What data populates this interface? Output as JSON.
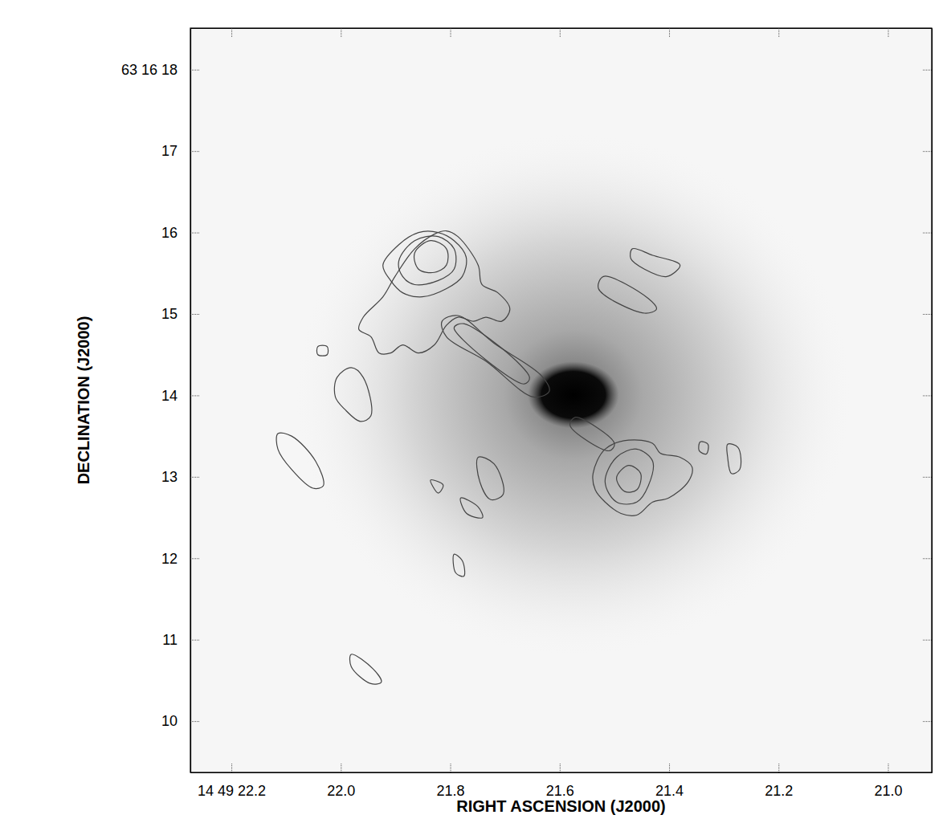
{
  "chart_data": {
    "type": "contour",
    "x_label": "RIGHT ASCENSION (J2000)",
    "y_label": "DECLINATION (J2000)",
    "xlim": [
      22.275,
      20.92
    ],
    "ylim": [
      9.37,
      18.51
    ],
    "xticks": [
      {
        "value": 22.2,
        "label": "14 49 22.2"
      },
      {
        "value": 22.0,
        "label": "22.0"
      },
      21.8,
      21.6,
      21.4,
      21.2,
      {
        "value": 21.0,
        "label": "21.0"
      }
    ],
    "yticks": [
      {
        "value": 18,
        "label": "63 16 18"
      },
      17,
      16,
      15,
      14,
      13,
      12,
      11,
      10
    ],
    "galaxy": {
      "ra": 21.575,
      "dec": 14.006,
      "core_major": 0.56,
      "core_minor": 0.41,
      "halo_major": 3.4,
      "halo_minor": 3.2
    },
    "contours": [
      {
        "ra": [
          21.967,
          21.959,
          21.923,
          21.901,
          21.865,
          21.829,
          21.807,
          21.786,
          21.749,
          21.742,
          21.713,
          21.691,
          21.706,
          21.735,
          21.757,
          21.786,
          21.807,
          21.829,
          21.858,
          21.887,
          21.909,
          21.93,
          21.945
        ],
        "dec": [
          14.81,
          14.96,
          15.21,
          15.46,
          15.8,
          15.98,
          16.02,
          15.95,
          15.6,
          15.36,
          15.26,
          15.06,
          14.91,
          14.96,
          14.91,
          14.96,
          14.86,
          14.62,
          14.52,
          14.62,
          14.52,
          14.52,
          14.72
        ]
      },
      {
        "ra": [
          21.923,
          21.894,
          21.858,
          21.822,
          21.793,
          21.771,
          21.778,
          21.807,
          21.851,
          21.887,
          21.909
        ],
        "dec": [
          15.6,
          15.85,
          16.0,
          16.0,
          15.9,
          15.7,
          15.46,
          15.31,
          15.21,
          15.26,
          15.41
        ]
      },
      {
        "ra": [
          21.894,
          21.865,
          21.822,
          21.793,
          21.793,
          21.822,
          21.865,
          21.887
        ],
        "dec": [
          15.65,
          15.9,
          15.95,
          15.8,
          15.55,
          15.41,
          15.36,
          15.46
        ]
      },
      {
        "ra": [
          21.865,
          21.836,
          21.807,
          21.807,
          21.829,
          21.858
        ],
        "dec": [
          15.75,
          15.9,
          15.8,
          15.6,
          15.51,
          15.55
        ]
      },
      {
        "ra": [
          21.815,
          21.786,
          21.72,
          21.633,
          21.619,
          21.648,
          21.735,
          21.807
        ],
        "dec": [
          14.91,
          14.98,
          14.64,
          14.24,
          14.05,
          13.98,
          14.42,
          14.72
        ]
      },
      {
        "ra": [
          21.793,
          21.775,
          21.655,
          21.665
        ],
        "dec": [
          14.83,
          14.88,
          14.22,
          14.14
        ]
      },
      {
        "ra": [
          21.572,
          21.5,
          21.509,
          21.581
        ],
        "dec": [
          13.73,
          13.41,
          13.32,
          13.63
        ]
      },
      {
        "ra": [
          21.539,
          21.517,
          21.474,
          21.43,
          21.416,
          21.38,
          21.358,
          21.365,
          21.401,
          21.43,
          21.459,
          21.488,
          21.517,
          21.535
        ],
        "dec": [
          13.04,
          13.34,
          13.45,
          13.41,
          13.29,
          13.24,
          13.12,
          12.94,
          12.74,
          12.69,
          12.53,
          12.55,
          12.69,
          12.84
        ]
      },
      {
        "ra": [
          21.517,
          21.496,
          21.459,
          21.43,
          21.438,
          21.459,
          21.496
        ],
        "dec": [
          12.94,
          13.24,
          13.34,
          13.19,
          12.89,
          12.69,
          12.69
        ]
      },
      {
        "ra": [
          21.496,
          21.474,
          21.452,
          21.459,
          21.481
        ],
        "dec": [
          12.99,
          13.14,
          13.04,
          12.84,
          12.82
        ]
      },
      {
        "ra": [
          22.007,
          21.981,
          21.959,
          21.945,
          21.964,
          21.993,
          22.01
        ],
        "dec": [
          14.22,
          14.34,
          14.22,
          13.75,
          13.68,
          13.83,
          13.98
        ]
      },
      {
        "ra": [
          22.115,
          22.09,
          22.046,
          22.032,
          22.051,
          22.09,
          22.115
        ],
        "dec": [
          13.53,
          13.5,
          13.19,
          12.89,
          12.86,
          13.09,
          13.34
        ]
      },
      {
        "ra": [
          21.467,
          21.43,
          21.38,
          21.404,
          21.445,
          21.47
        ],
        "dec": [
          15.8,
          15.72,
          15.6,
          15.46,
          15.55,
          15.68
        ]
      },
      {
        "ra": [
          21.52,
          21.438,
          21.423,
          21.445,
          21.529
        ],
        "dec": [
          15.46,
          15.19,
          15.06,
          15.01,
          15.31
        ]
      },
      {
        "ra": [
          21.749,
          21.72,
          21.703,
          21.726,
          21.746
        ],
        "dec": [
          13.24,
          13.16,
          12.79,
          12.72,
          12.94
        ]
      },
      {
        "ra": [
          21.781,
          21.749,
          21.741,
          21.77
        ],
        "dec": [
          12.74,
          12.63,
          12.5,
          12.55
        ]
      },
      {
        "ra": [
          21.793,
          21.778,
          21.775,
          21.79
        ],
        "dec": [
          12.05,
          11.97,
          11.78,
          11.82
        ]
      },
      {
        "ra": [
          21.981,
          21.941,
          21.926,
          21.945,
          21.981
        ],
        "dec": [
          10.82,
          10.64,
          10.48,
          10.46,
          10.67
        ]
      },
      {
        "ra": [
          21.343,
          21.329,
          21.332,
          21.345
        ],
        "dec": [
          13.43,
          13.4,
          13.28,
          13.32
        ]
      },
      {
        "ra": [
          21.293,
          21.274,
          21.271,
          21.286,
          21.293
        ],
        "dec": [
          13.4,
          13.36,
          13.09,
          13.04,
          13.24
        ]
      },
      {
        "ra": [
          22.042,
          22.025,
          22.025,
          22.042
        ],
        "dec": [
          14.6,
          14.6,
          14.5,
          14.5
        ]
      },
      {
        "ra": [
          21.836,
          21.813,
          21.822
        ],
        "dec": [
          12.96,
          12.9,
          12.8
        ]
      }
    ]
  }
}
